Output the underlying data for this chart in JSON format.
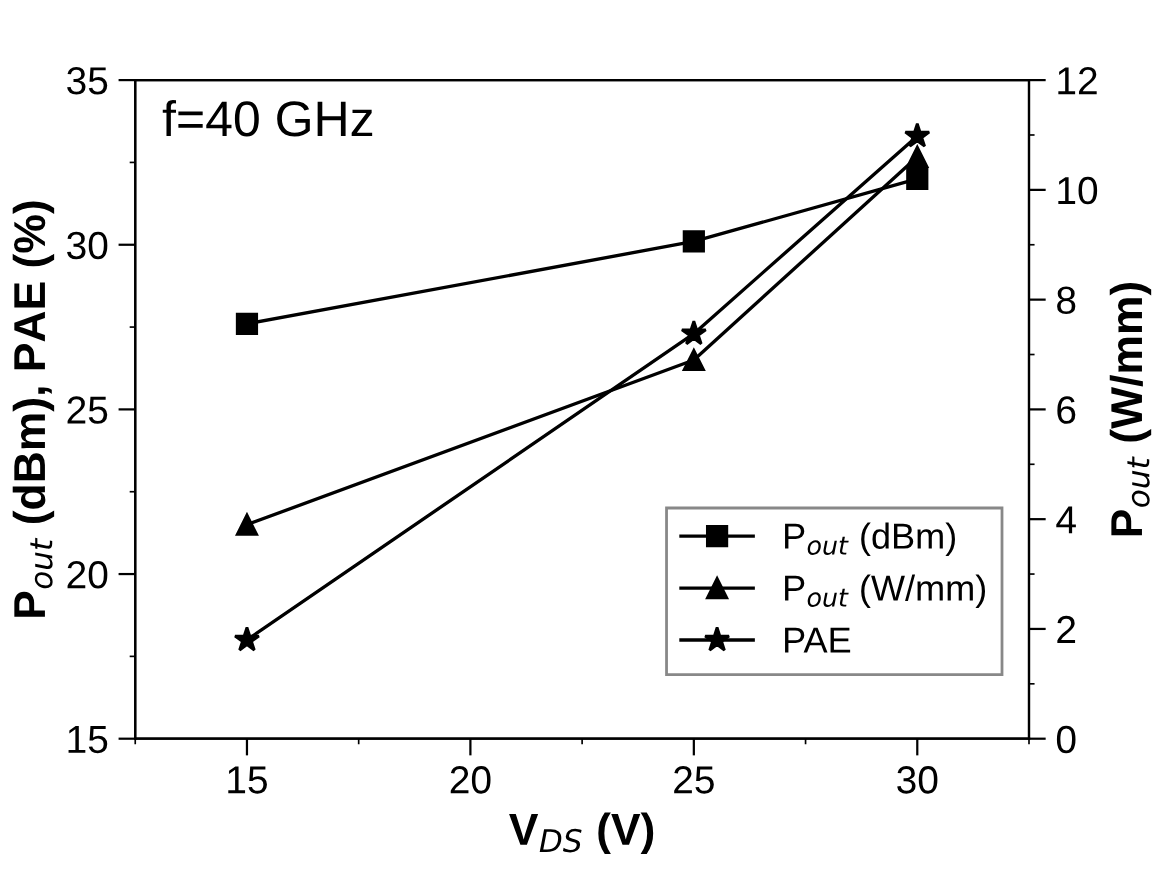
{
  "chart_data": {
    "type": "line",
    "xlabel": "V$_{DS}$ (V)",
    "ylabel": "P$_{out}$ (dBm), PAE (%)",
    "y2label": "P$_{out}$ (W/mm)",
    "annotations": [
      "f=40 GHz"
    ],
    "x": [
      15,
      25,
      30
    ],
    "series": [
      {
        "name": "P$_{out}$ (dBm)",
        "color": "#000000",
        "marker": "square",
        "values": [
          27.6,
          30.1,
          32.0
        ]
      },
      {
        "name": "P$_{out}$ (W/mm)",
        "color": "#000000",
        "marker": "triangle",
        "axis": "y2",
        "values": [
          3.9,
          6.9,
          10.6
        ]
      },
      {
        "name": "PAE",
        "color": "#000000",
        "marker": "star",
        "values": [
          18.0,
          27.3,
          33.3
        ]
      }
    ],
    "xlim": [
      12.5,
      32.5
    ],
    "xticks": [
      15,
      20,
      25,
      30
    ],
    "ylim": [
      15,
      35
    ],
    "yticks": [
      15,
      20,
      25,
      30,
      35
    ],
    "y2lim": [
      0,
      12
    ],
    "y2ticks": [
      0,
      2,
      4,
      6,
      8,
      10,
      12
    ],
    "legend": "bottom right",
    "grid": false,
    "line_style": "solid"
  }
}
